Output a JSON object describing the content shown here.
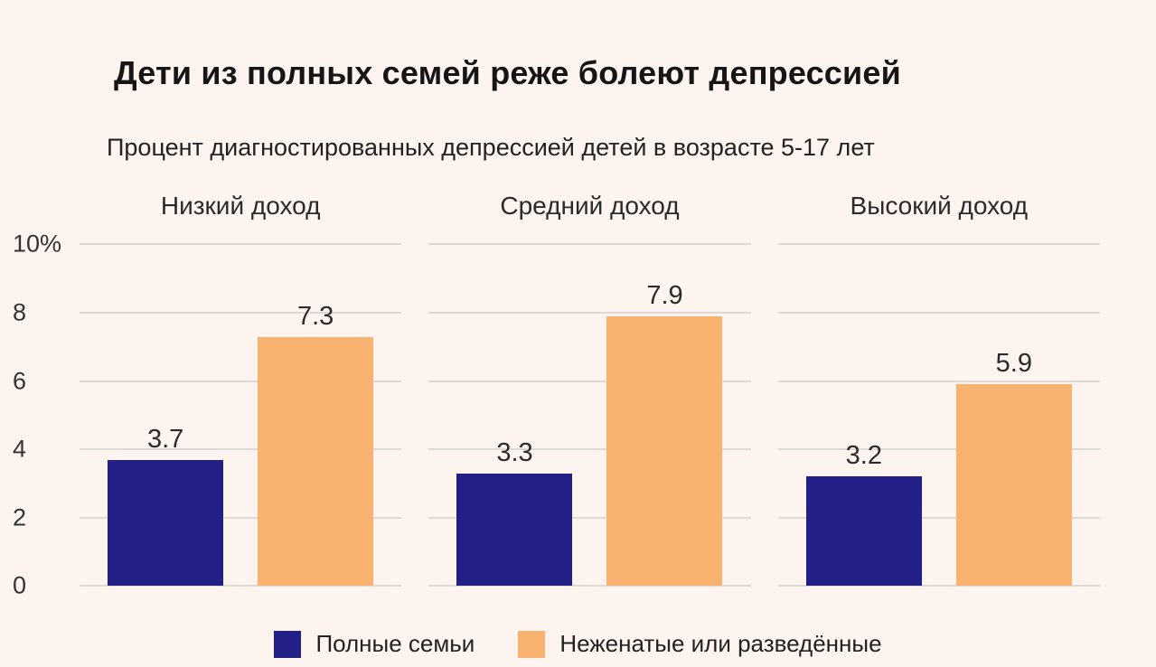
{
  "chart_data": {
    "type": "bar",
    "title": "Дети из полных семей реже болеют депрессией",
    "subtitle": "Процент диагностированных депрессией детей в возрасте 5-17 лет",
    "groups": [
      "Низкий доход",
      "Средний доход",
      "Высокий доход"
    ],
    "series": [
      {
        "name": "Полные семьи",
        "color": "#221f87",
        "values": [
          3.7,
          3.3,
          3.2
        ]
      },
      {
        "name": "Неженатые или разведённые",
        "color": "#f9b26f",
        "values": [
          7.3,
          7.9,
          5.9
        ]
      }
    ],
    "ylim": [
      0,
      10
    ],
    "ytick_labels": [
      "10%",
      "8",
      "6",
      "4",
      "2",
      "0"
    ],
    "grid": true,
    "legend_position": "bottom",
    "background_color": "#fdf4f0"
  }
}
